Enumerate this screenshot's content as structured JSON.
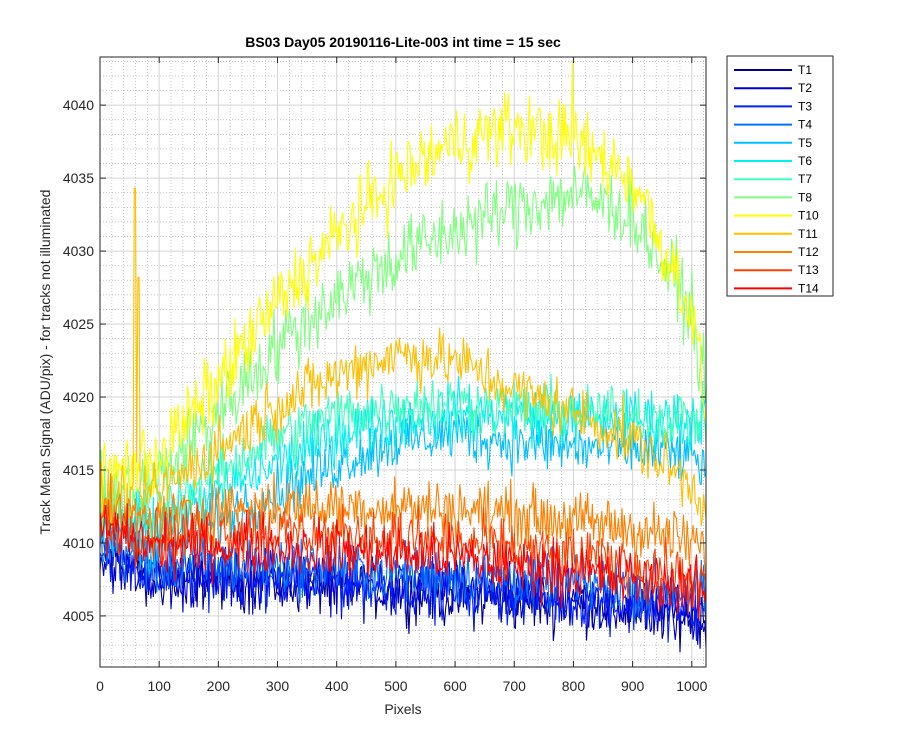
{
  "chart_data": {
    "type": "line",
    "title": "BS03 Day05 20190116-Lite-003 int time = 15 sec",
    "xlabel": "Pixels",
    "ylabel": "Track Mean Signal (ADU/pix) - for tracks not illuminated",
    "xlim": [
      0,
      1024
    ],
    "ylim": [
      4001.5,
      4043.3
    ],
    "xticks": [
      "0",
      "100",
      "200",
      "300",
      "400",
      "500",
      "600",
      "700",
      "800",
      "900",
      "1000"
    ],
    "yticks": [
      "4005",
      "4010",
      "4015",
      "4020",
      "4025",
      "4030",
      "4035",
      "4040"
    ],
    "grid": "major and minor",
    "legend_position": "outside-top-right",
    "series": [
      {
        "name": "T1",
        "color": "#00008F",
        "x": [
          0,
          100,
          200,
          300,
          400,
          500,
          600,
          700,
          800,
          900,
          1000,
          1024
        ],
        "y": [
          4009.5,
          4007.5,
          4007.5,
          4007.3,
          4007.0,
          4006.7,
          4006.3,
          4006.0,
          4005.8,
          4005.5,
          4005.0,
          4004.8
        ]
      },
      {
        "name": "T2",
        "color": "#0000CC",
        "x": [
          0,
          100,
          200,
          300,
          400,
          500,
          600,
          700,
          800,
          900,
          1000,
          1024
        ],
        "y": [
          4009.0,
          4007.3,
          4007.5,
          4007.5,
          4007.3,
          4007.0,
          4006.8,
          4006.5,
          4006.0,
          4005.5,
          4005.0,
          4005.0
        ]
      },
      {
        "name": "T3",
        "color": "#0020FF",
        "x": [
          0,
          100,
          200,
          300,
          400,
          500,
          600,
          700,
          800,
          900,
          1000,
          1024
        ],
        "y": [
          4009.5,
          4007.8,
          4007.7,
          4007.5,
          4007.3,
          4007.0,
          4006.8,
          4006.5,
          4006.2,
          4006.0,
          4005.5,
          4005.2
        ]
      },
      {
        "name": "T4",
        "color": "#0070FF",
        "x": [
          0,
          100,
          200,
          300,
          400,
          500,
          600,
          700,
          800,
          900,
          1000,
          1024
        ],
        "y": [
          4010.0,
          4008.5,
          4008.5,
          4008.5,
          4008.3,
          4008.0,
          4007.8,
          4007.5,
          4007.3,
          4007.0,
          4006.8,
          4006.5
        ]
      },
      {
        "name": "T5",
        "color": "#00BFFF",
        "x": [
          0,
          100,
          200,
          300,
          400,
          500,
          600,
          700,
          800,
          900,
          1000,
          1024
        ],
        "y": [
          4011.0,
          4010.0,
          4011.5,
          4013.5,
          4015.5,
          4017.0,
          4017.5,
          4017.0,
          4016.5,
          4016.5,
          4016.0,
          4015.0
        ]
      },
      {
        "name": "T6",
        "color": "#00F0F0",
        "x": [
          0,
          100,
          200,
          300,
          400,
          500,
          600,
          700,
          800,
          900,
          1000,
          1024
        ],
        "y": [
          4012.0,
          4011.5,
          4013.5,
          4015.5,
          4017.5,
          4018.5,
          4019.0,
          4018.8,
          4018.5,
          4018.5,
          4018.5,
          4019.0
        ]
      },
      {
        "name": "T7",
        "color": "#40FFBF",
        "x": [
          0,
          100,
          200,
          300,
          400,
          500,
          600,
          700,
          800,
          900,
          1000,
          1024
        ],
        "y": [
          4012.0,
          4012.0,
          4015.0,
          4017.3,
          4018.8,
          4019.5,
          4019.5,
          4019.2,
          4019.0,
          4018.8,
          4018.5,
          4018.5
        ]
      },
      {
        "name": "T8",
        "color": "#80FF80",
        "x": [
          0,
          100,
          200,
          300,
          400,
          500,
          600,
          700,
          800,
          900,
          1000,
          1024
        ],
        "y": [
          4013.0,
          4014.5,
          4019.0,
          4023.5,
          4027.0,
          4029.5,
          4031.5,
          4033.0,
          4034.0,
          4032.5,
          4026.0,
          4020.0
        ]
      },
      {
        "name": "T10",
        "color": "#FFFF00",
        "x": [
          0,
          100,
          200,
          300,
          400,
          500,
          600,
          700,
          800,
          900,
          1000,
          1024
        ],
        "y": [
          4014.5,
          4016.0,
          4021.0,
          4026.5,
          4031.0,
          4035.0,
          4037.5,
          4038.5,
          4037.5,
          4035.0,
          4026.0,
          4019.0
        ]
      },
      {
        "name": "T11",
        "color": "#FFBF00",
        "x": [
          0,
          100,
          200,
          300,
          400,
          500,
          600,
          700,
          800,
          900,
          1000,
          1024
        ],
        "y": [
          4013.0,
          4013.5,
          4016.5,
          4019.5,
          4021.5,
          4023.0,
          4022.5,
          4020.5,
          4019.0,
          4017.0,
          4014.0,
          4012.5
        ]
      },
      {
        "name": "T12",
        "color": "#FF8000",
        "x": [
          0,
          100,
          200,
          300,
          400,
          500,
          600,
          700,
          800,
          900,
          1000,
          1024
        ],
        "y": [
          4012.0,
          4011.5,
          4012.3,
          4012.5,
          4012.5,
          4012.5,
          4012.3,
          4012.0,
          4011.5,
          4011.0,
          4010.0,
          4009.5
        ]
      },
      {
        "name": "T13",
        "color": "#FF4000",
        "x": [
          0,
          100,
          200,
          300,
          400,
          500,
          600,
          700,
          800,
          900,
          1000,
          1024
        ],
        "y": [
          4011.5,
          4010.5,
          4010.8,
          4010.8,
          4010.5,
          4010.3,
          4010.0,
          4009.5,
          4009.0,
          4008.5,
          4007.5,
          4007.0
        ]
      },
      {
        "name": "T14",
        "color": "#FF0000",
        "x": [
          0,
          100,
          200,
          300,
          400,
          500,
          600,
          700,
          800,
          900,
          1000,
          1024
        ],
        "y": [
          4011.0,
          4009.7,
          4009.8,
          4009.8,
          4009.5,
          4009.3,
          4009.0,
          4008.5,
          4008.0,
          4007.5,
          4007.0,
          4006.5
        ]
      }
    ]
  }
}
